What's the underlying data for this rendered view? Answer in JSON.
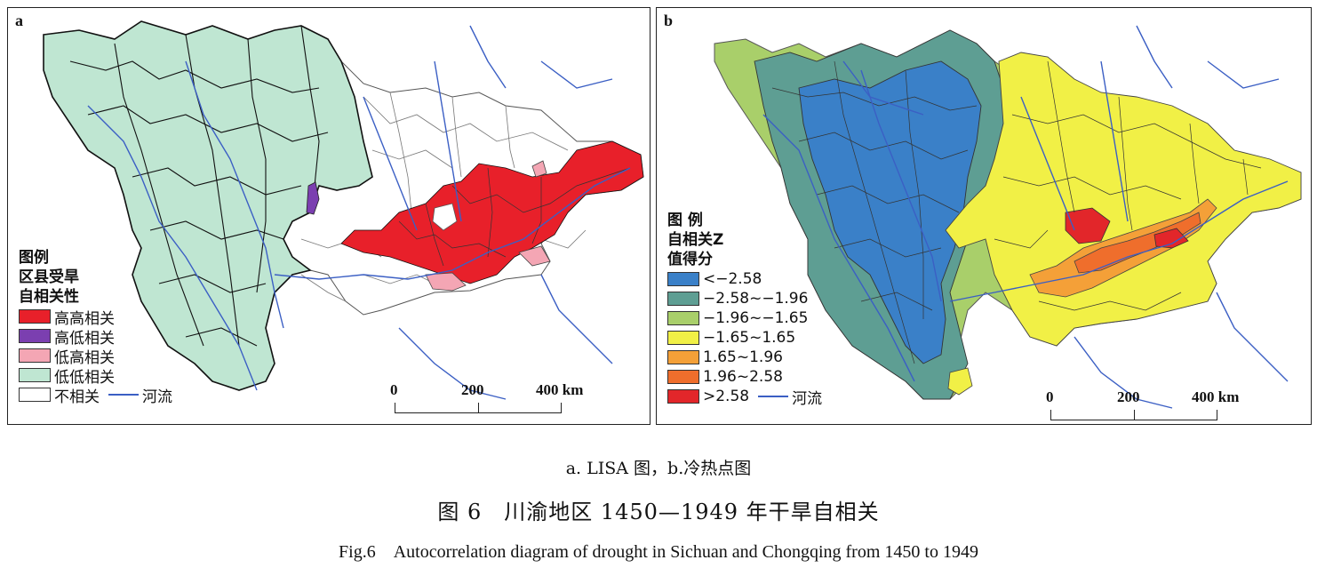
{
  "panel_a": {
    "letter": "a",
    "legend": {
      "title_lines": [
        "图例",
        "区县受旱",
        "自相关性"
      ],
      "items": [
        {
          "label": "高高相关",
          "color": "#e8202a"
        },
        {
          "label": "高低相关",
          "color": "#7b3fb0"
        },
        {
          "label": "低高相关",
          "color": "#f4a6b4"
        },
        {
          "label": "低低相关",
          "color": "#bfe6d2"
        },
        {
          "label": "不相关",
          "color": "#ffffff"
        }
      ],
      "river_label": "河流"
    },
    "scale": {
      "ticks": [
        "0",
        "200",
        "400 km"
      ]
    }
  },
  "panel_b": {
    "letter": "b",
    "legend": {
      "title_lines": [
        "图 例",
        "自相关Z",
        "值得分"
      ],
      "items": [
        {
          "label": "<−2.58",
          "color": "#3a80c8"
        },
        {
          "label": "−2.58~−1.96",
          "color": "#5e9e93"
        },
        {
          "label": "−1.96~−1.65",
          "color": "#a9cf6a"
        },
        {
          "label": "−1.65~1.65",
          "color": "#f1f046"
        },
        {
          "label": "1.65~1.96",
          "color": "#f4a038"
        },
        {
          "label": "1.96~2.58",
          "color": "#ef6e2c"
        },
        {
          "label": ">2.58",
          "color": "#e2262a"
        }
      ],
      "river_label": "河流"
    },
    "scale": {
      "ticks": [
        "0",
        "200",
        "400 km"
      ]
    }
  },
  "colors": {
    "river": "#3b5fc4",
    "boundary": "#222222",
    "no_corr_fill": "#ffffff"
  },
  "captions": {
    "sub": "a. LISA 图，b.冷热点图",
    "cn": "图 6　川渝地区 1450—1949 年干旱自相关",
    "en": "Fig.6　Autocorrelation diagram of drought in Sichuan and Chongqing from 1450 to 1949"
  }
}
